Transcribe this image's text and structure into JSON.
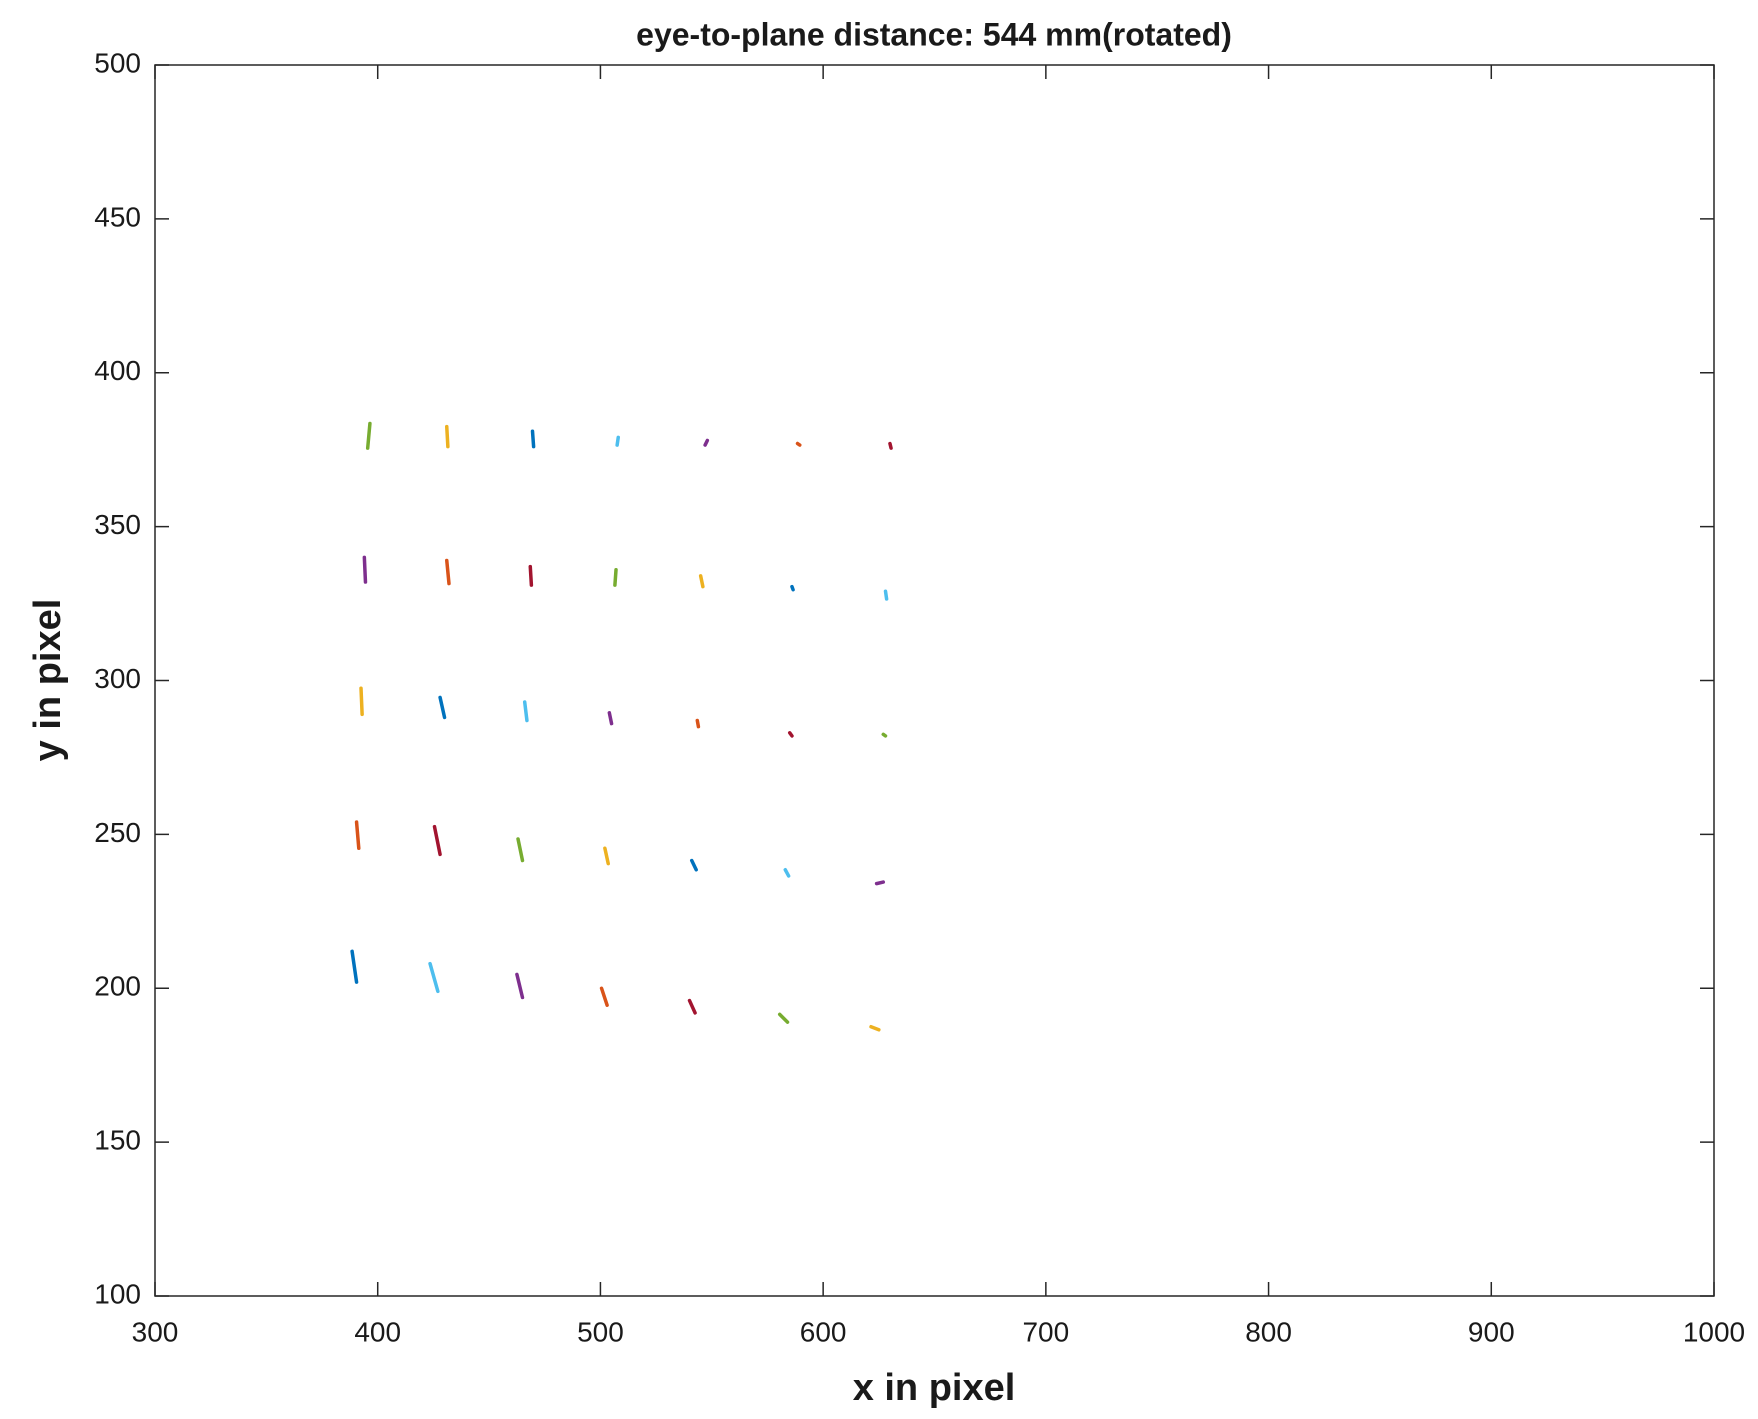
{
  "chart_data": {
    "type": "segments",
    "title": "eye-to-plane distance: 544 mm(rotated)",
    "x_label": "x in pixel",
    "y_label": "y in pixel",
    "xlim": [
      300,
      1000
    ],
    "xticks": [
      300,
      400,
      500,
      600,
      700,
      800,
      900,
      1000
    ],
    "ylim": [
      100,
      500
    ],
    "yticks": [
      100,
      150,
      200,
      250,
      300,
      350,
      400,
      450,
      500
    ],
    "box": true,
    "series": [
      {
        "color": "#77AC30",
        "x": [
          396.5,
          395.5
        ],
        "values": [
          383.5,
          375.5
        ]
      },
      {
        "color": "#EDB120",
        "x": [
          431,
          431.5
        ],
        "values": [
          382.5,
          376
        ]
      },
      {
        "color": "#0072BD",
        "x": [
          469.5,
          470
        ],
        "values": [
          381,
          376
        ]
      },
      {
        "color": "#4DBEEE",
        "x": [
          508,
          507.5
        ],
        "values": [
          379,
          376.5
        ]
      },
      {
        "color": "#7E2F8E",
        "x": [
          548,
          547
        ],
        "values": [
          378,
          376.5
        ]
      },
      {
        "color": "#D95319",
        "x": [
          588.5,
          589.5
        ],
        "values": [
          377,
          376.5
        ]
      },
      {
        "color": "#A2142F",
        "x": [
          630,
          630.5
        ],
        "values": [
          377,
          375.5
        ]
      },
      {
        "color": "#7E2F8E",
        "x": [
          394,
          394.5
        ],
        "values": [
          340,
          332
        ]
      },
      {
        "color": "#D95319",
        "x": [
          431,
          432
        ],
        "values": [
          339,
          331.5
        ]
      },
      {
        "color": "#A2142F",
        "x": [
          468.5,
          469
        ],
        "values": [
          337,
          331
        ]
      },
      {
        "color": "#77AC30",
        "x": [
          507,
          506.5
        ],
        "values": [
          336,
          331
        ]
      },
      {
        "color": "#EDB120",
        "x": [
          545,
          546
        ],
        "values": [
          334,
          330.5
        ]
      },
      {
        "color": "#0072BD",
        "x": [
          586,
          586.5
        ],
        "values": [
          330.5,
          329.5
        ]
      },
      {
        "color": "#4DBEEE",
        "x": [
          628,
          628.5
        ],
        "values": [
          329,
          326.5
        ]
      },
      {
        "color": "#EDB120",
        "x": [
          392.5,
          393
        ],
        "values": [
          297.5,
          289
        ]
      },
      {
        "color": "#0072BD",
        "x": [
          428,
          430
        ],
        "values": [
          294.5,
          288
        ]
      },
      {
        "color": "#4DBEEE",
        "x": [
          466,
          467
        ],
        "values": [
          293,
          287
        ]
      },
      {
        "color": "#7E2F8E",
        "x": [
          504,
          505
        ],
        "values": [
          289.5,
          286
        ]
      },
      {
        "color": "#D95319",
        "x": [
          543.5,
          544
        ],
        "values": [
          287,
          285
        ]
      },
      {
        "color": "#A2142F",
        "x": [
          585,
          586
        ],
        "values": [
          283,
          282
        ]
      },
      {
        "color": "#77AC30",
        "x": [
          627,
          628
        ],
        "values": [
          282.5,
          282
        ]
      },
      {
        "color": "#D95319",
        "x": [
          390.5,
          391.5
        ],
        "values": [
          254,
          245.5
        ]
      },
      {
        "color": "#A2142F",
        "x": [
          425.5,
          428
        ],
        "values": [
          252.5,
          243.5
        ]
      },
      {
        "color": "#77AC30",
        "x": [
          463,
          465
        ],
        "values": [
          248.5,
          241.5
        ]
      },
      {
        "color": "#EDB120",
        "x": [
          502,
          503.5
        ],
        "values": [
          245.5,
          240.5
        ]
      },
      {
        "color": "#0072BD",
        "x": [
          541,
          543
        ],
        "values": [
          241.5,
          238.5
        ]
      },
      {
        "color": "#4DBEEE",
        "x": [
          583,
          584.5
        ],
        "values": [
          238.5,
          236.5
        ]
      },
      {
        "color": "#7E2F8E",
        "x": [
          624,
          627
        ],
        "values": [
          234,
          234.5
        ]
      },
      {
        "color": "#0072BD",
        "x": [
          388.5,
          390.5
        ],
        "values": [
          212,
          202
        ]
      },
      {
        "color": "#4DBEEE",
        "x": [
          423.5,
          427
        ],
        "values": [
          208,
          199
        ]
      },
      {
        "color": "#7E2F8E",
        "x": [
          462.5,
          465
        ],
        "values": [
          204.5,
          197
        ]
      },
      {
        "color": "#D95319",
        "x": [
          500.5,
          503
        ],
        "values": [
          200,
          194.5
        ]
      },
      {
        "color": "#A2142F",
        "x": [
          540,
          542.5
        ],
        "values": [
          196,
          192
        ]
      },
      {
        "color": "#77AC30",
        "x": [
          580.5,
          584
        ],
        "values": [
          191.5,
          189
        ]
      },
      {
        "color": "#EDB120",
        "x": [
          621.5,
          625
        ],
        "values": [
          187.5,
          186.5
        ]
      }
    ]
  }
}
